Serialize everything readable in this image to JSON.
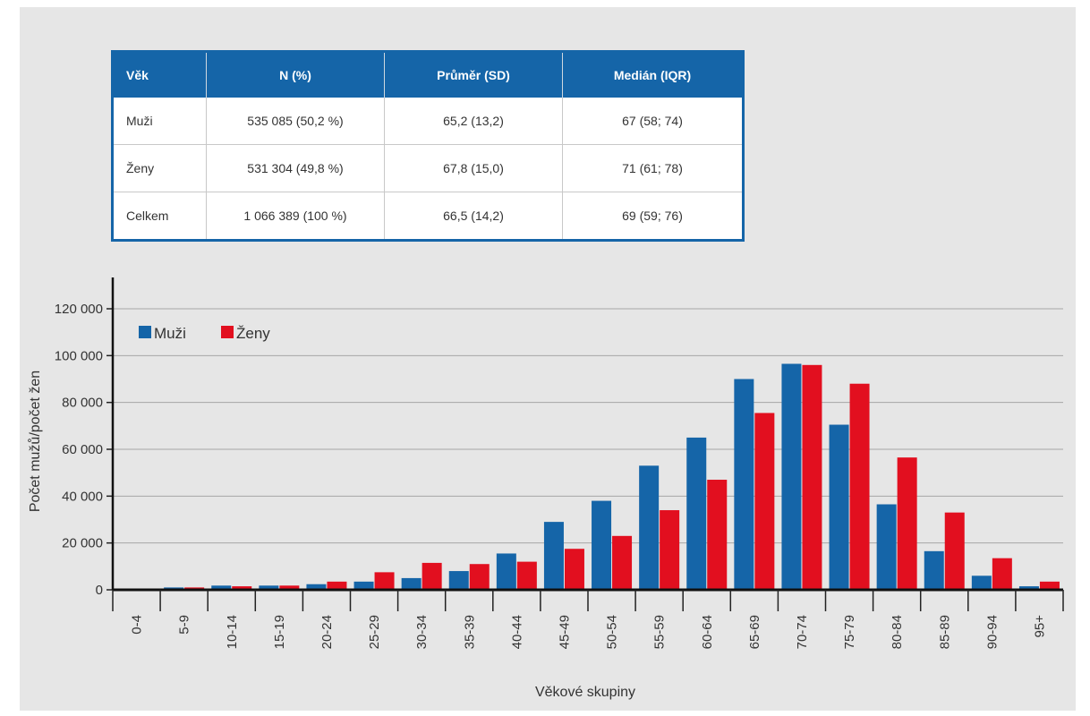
{
  "table": {
    "headers": [
      "Věk",
      "N (%)",
      "Průměr (SD)",
      "Medián (IQR)"
    ],
    "rows": [
      [
        "Muži",
        "535 085 (50,2 %)",
        "65,2 (13,2)",
        "67 (58; 74)"
      ],
      [
        "Ženy",
        "531 304 (49,8 %)",
        "67,8 (15,0)",
        "71 (61; 78)"
      ],
      [
        "Celkem",
        "1 066 389 (100 %)",
        "66,5 (14,2)",
        "69 (59; 76)"
      ]
    ],
    "header_color": "#1565a8"
  },
  "chart_data": {
    "type": "bar",
    "categories": [
      "0-4",
      "5-9",
      "10-14",
      "15-19",
      "20-24",
      "25-29",
      "30-34",
      "35-39",
      "40-44",
      "45-49",
      "50-54",
      "55-59",
      "60-64",
      "65-69",
      "70-74",
      "75-79",
      "80-84",
      "85-89",
      "90-94",
      "95+"
    ],
    "series": [
      {
        "name": "Muži",
        "color": "#1565a8",
        "values": [
          500,
          1000,
          1800,
          1800,
          2400,
          3500,
          5000,
          8000,
          15500,
          29000,
          38000,
          53000,
          65000,
          90000,
          96500,
          70500,
          36500,
          16500,
          6000,
          1500
        ]
      },
      {
        "name": "Ženy",
        "color": "#e20f1f",
        "values": [
          500,
          1000,
          1500,
          1800,
          3500,
          7500,
          11500,
          11000,
          12000,
          17500,
          23000,
          34000,
          47000,
          75500,
          96000,
          88000,
          56500,
          33000,
          13500,
          3500
        ]
      }
    ],
    "y_ticks": [
      "0",
      "20 000",
      "40 000",
      "60 000",
      "80 000",
      "100 000",
      "120 000"
    ],
    "ylim": [
      0,
      120000
    ],
    "xlabel": "Věkové skupiny",
    "ylabel": "Počet mužů/počet žen",
    "legend": "top-left",
    "grid": true
  }
}
